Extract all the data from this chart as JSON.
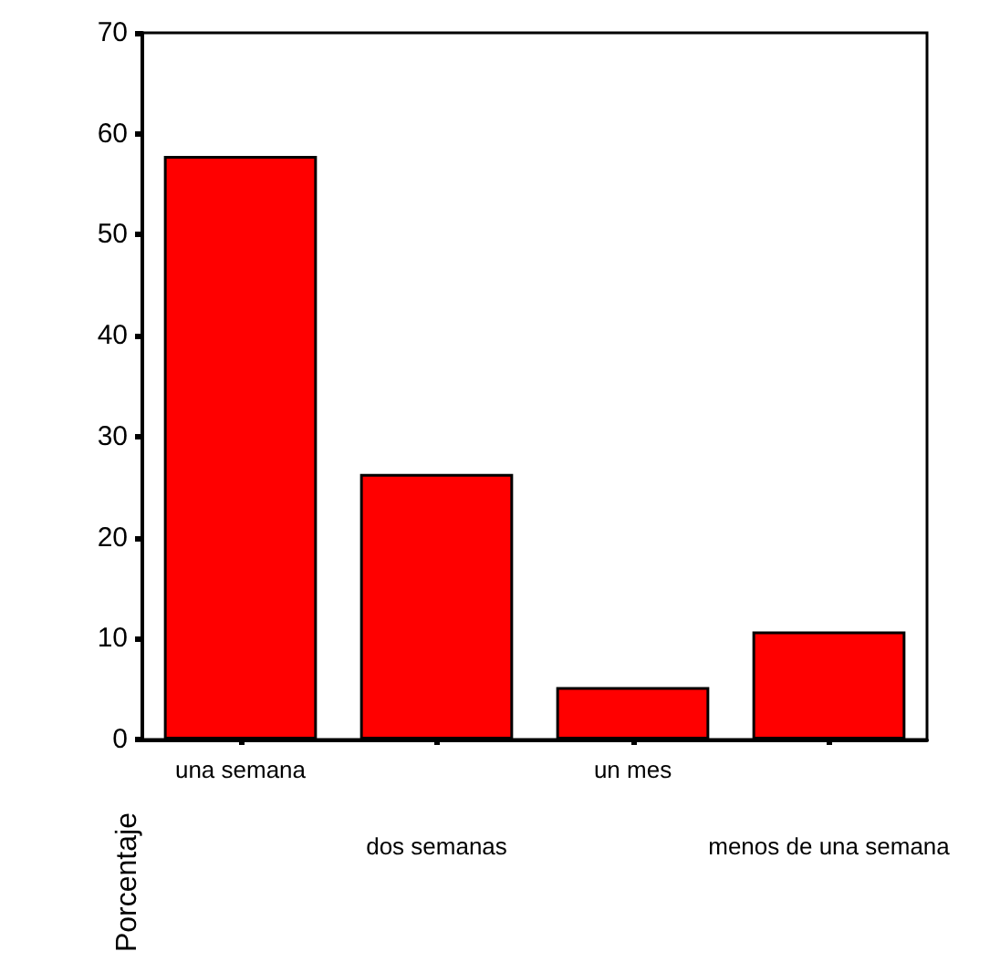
{
  "chart_data": {
    "type": "bar",
    "ylabel": "Porcentaje",
    "categories": [
      "una semana",
      "dos semanas",
      "un mes",
      "menos de una semana"
    ],
    "values": [
      57.8,
      26.3,
      5.2,
      10.7
    ],
    "color": "#ff0000",
    "ylim": [
      0,
      70
    ],
    "yticks": [
      0,
      10,
      20,
      30,
      40,
      50,
      60,
      70
    ],
    "grid": false
  }
}
